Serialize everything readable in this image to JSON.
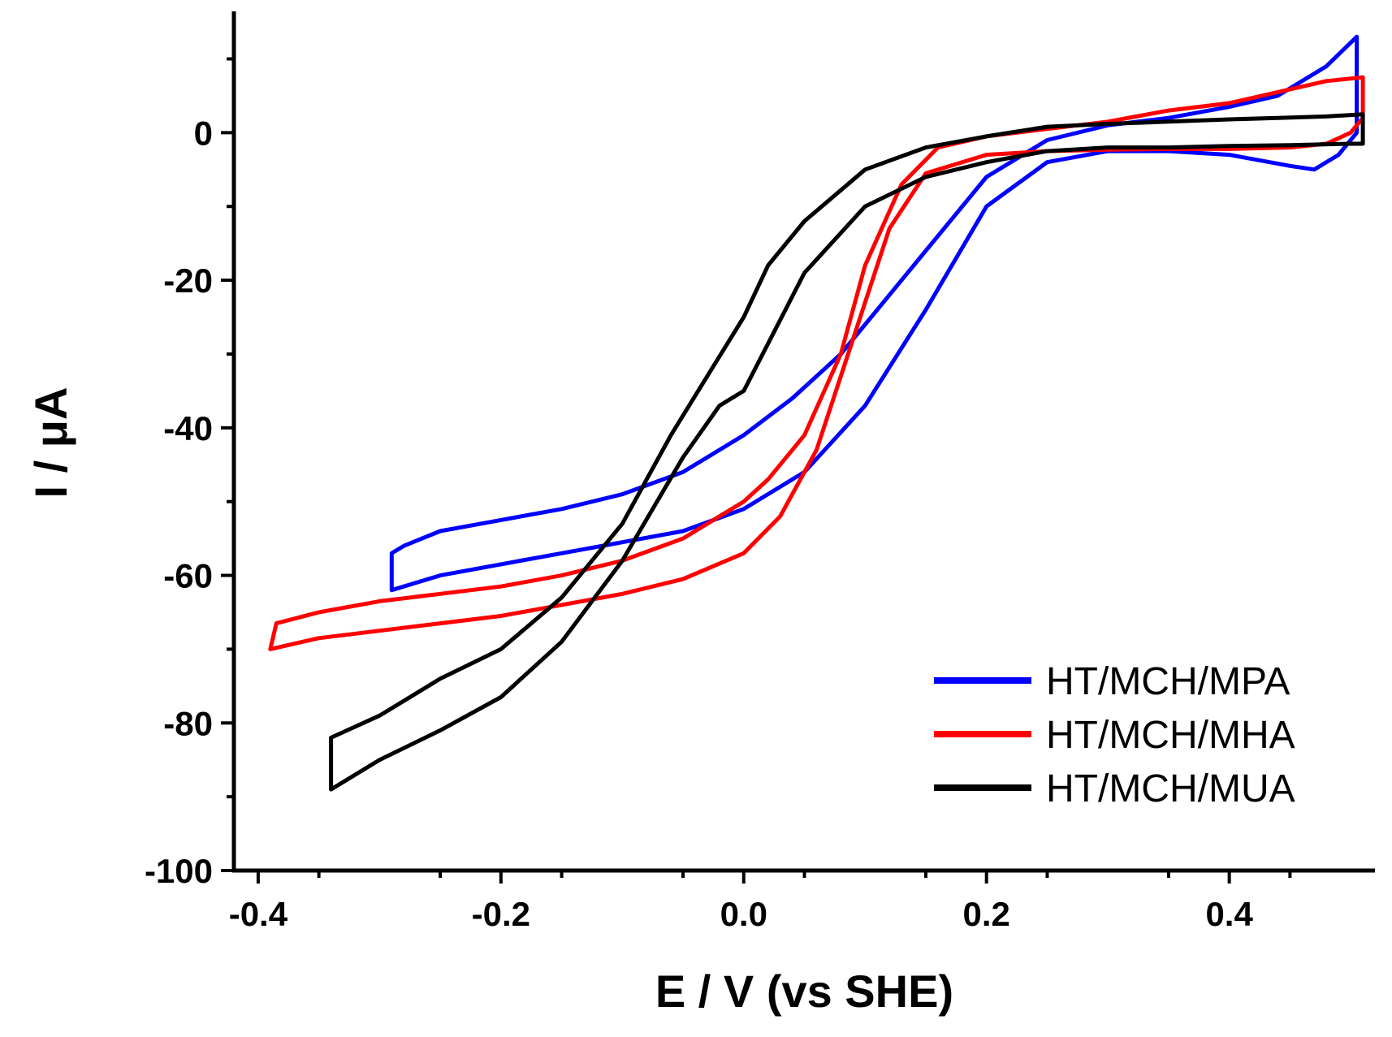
{
  "chart_data": {
    "type": "line",
    "xlabel": "E / V (vs SHE)",
    "ylabel": "I / μA",
    "xlim": [
      -0.42,
      0.52
    ],
    "ylim": [
      -100,
      16
    ],
    "x_ticks": [
      -0.4,
      -0.2,
      0.0,
      0.2,
      0.4
    ],
    "x_tick_labels": [
      "-0.4",
      "-0.2",
      "0.0",
      "0.2",
      "0.4"
    ],
    "y_ticks": [
      0,
      -20,
      -40,
      -60,
      -80,
      -100
    ],
    "y_tick_labels": [
      "0",
      "-20",
      "-40",
      "-60",
      "-80",
      "-100"
    ],
    "grid": false,
    "legend_position": "bottom-right",
    "series": [
      {
        "name": "HT/MCH/MPA",
        "color": "#0000ff",
        "x": [
          -0.29,
          -0.25,
          -0.2,
          -0.15,
          -0.1,
          -0.05,
          0.0,
          0.05,
          0.1,
          0.15,
          0.2,
          0.25,
          0.3,
          0.35,
          0.4,
          0.45,
          0.47,
          0.49,
          0.505,
          0.505,
          0.48,
          0.44,
          0.4,
          0.35,
          0.3,
          0.25,
          0.2,
          0.16,
          0.12,
          0.08,
          0.04,
          0.0,
          -0.05,
          -0.1,
          -0.15,
          -0.2,
          -0.25,
          -0.28,
          -0.29,
          -0.29
        ],
        "y": [
          -62,
          -60,
          -58.5,
          -57,
          -55.5,
          -54,
          -51,
          -46,
          -37,
          -24,
          -10,
          -4,
          -2.5,
          -2.5,
          -3,
          -4.5,
          -5,
          -3,
          0,
          13,
          9,
          5,
          3.5,
          2,
          1,
          -1,
          -6,
          -14,
          -22,
          -30,
          -36,
          -41,
          -46,
          -49,
          -51,
          -52.5,
          -54,
          -56,
          -57,
          -62
        ]
      },
      {
        "name": "HT/MCH/MHA",
        "color": "#ff0000",
        "x": [
          -0.39,
          -0.35,
          -0.3,
          -0.25,
          -0.2,
          -0.15,
          -0.1,
          -0.05,
          0.0,
          0.03,
          0.06,
          0.09,
          0.12,
          0.15,
          0.2,
          0.25,
          0.3,
          0.35,
          0.4,
          0.45,
          0.48,
          0.5,
          0.51,
          0.51,
          0.48,
          0.44,
          0.4,
          0.35,
          0.3,
          0.25,
          0.2,
          0.16,
          0.13,
          0.1,
          0.08,
          0.05,
          0.02,
          0.0,
          -0.05,
          -0.1,
          -0.15,
          -0.2,
          -0.25,
          -0.3,
          -0.35,
          -0.385,
          -0.39
        ],
        "y": [
          -70,
          -68.5,
          -67.5,
          -66.5,
          -65.5,
          -64,
          -62.5,
          -60.5,
          -57,
          -52,
          -43,
          -28,
          -13,
          -5.5,
          -3,
          -2.5,
          -2.3,
          -2.2,
          -2.2,
          -2,
          -1.5,
          0,
          2,
          7.5,
          7,
          5.5,
          4,
          3,
          1.5,
          0.5,
          -0.5,
          -2,
          -7,
          -18,
          -30,
          -41,
          -47,
          -50,
          -55,
          -58,
          -60,
          -61.5,
          -62.5,
          -63.5,
          -65,
          -66.5,
          -70
        ]
      },
      {
        "name": "HT/MCH/MUA",
        "color": "#000000",
        "x": [
          -0.34,
          -0.3,
          -0.25,
          -0.2,
          -0.15,
          -0.1,
          -0.05,
          -0.02,
          0.0,
          0.05,
          0.1,
          0.15,
          0.2,
          0.25,
          0.3,
          0.35,
          0.4,
          0.45,
          0.5,
          0.51,
          0.51,
          0.48,
          0.44,
          0.4,
          0.35,
          0.3,
          0.25,
          0.2,
          0.15,
          0.1,
          0.05,
          0.02,
          0.0,
          -0.03,
          -0.06,
          -0.1,
          -0.15,
          -0.2,
          -0.25,
          -0.3,
          -0.34,
          -0.34
        ],
        "y": [
          -89,
          -85,
          -81,
          -76.5,
          -69,
          -58,
          -44,
          -37,
          -35,
          -19,
          -10,
          -6,
          -4,
          -2.5,
          -2,
          -2,
          -1.8,
          -1.7,
          -1.5,
          -1.5,
          2.5,
          2.2,
          2,
          1.8,
          1.5,
          1.2,
          0.8,
          -0.5,
          -2,
          -5,
          -12,
          -18,
          -25,
          -33,
          -41,
          -53,
          -63,
          -70,
          -74,
          -79,
          -82,
          -89
        ]
      }
    ]
  }
}
